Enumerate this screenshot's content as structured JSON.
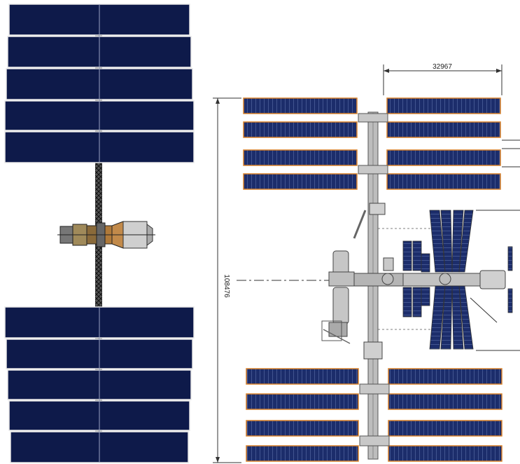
{
  "dimensions": {
    "width_label": "32967",
    "height_label": "108476"
  },
  "colors": {
    "panel_dark": "#0e1a4a",
    "panel_edge": "#f2f2f2",
    "truss": "#2a2a2a",
    "module": "#b8b8b8",
    "array_blue": "#1b2f6e",
    "array_edge": "#d9822b"
  }
}
